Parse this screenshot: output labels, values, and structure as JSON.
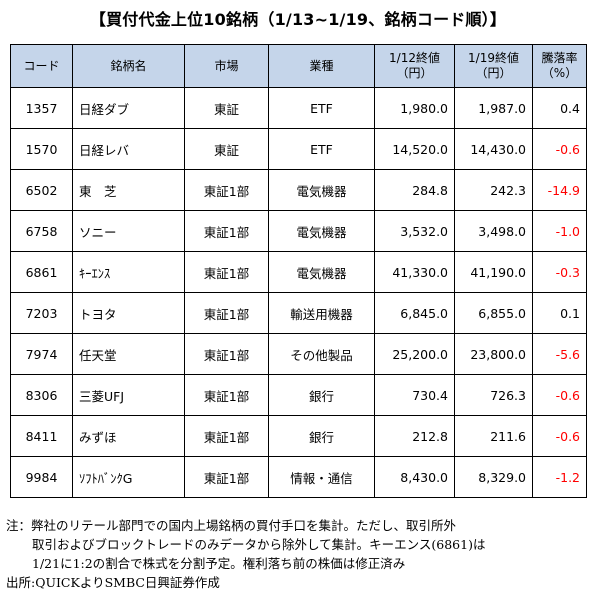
{
  "title": "【買付代金上位10銘柄（1/13~1/19、銘柄コード順）】",
  "table": {
    "headers": {
      "code": "コード",
      "name": "銘柄名",
      "market": "市場",
      "sector": "業種",
      "price_0112_line1": "1/12終値",
      "price_0112_line2": "（円）",
      "price_0119_line1": "1/19終値",
      "price_0119_line2": "（円）",
      "change_line1": "騰落率",
      "change_line2": "（%）"
    },
    "rows": [
      {
        "code": "1357",
        "name": "日経ダブ",
        "market": "東証",
        "sector": "ETF",
        "p1": "1,980.0",
        "p2": "1,987.0",
        "chg": "0.4",
        "neg": false
      },
      {
        "code": "1570",
        "name": "日経レバ",
        "market": "東証",
        "sector": "ETF",
        "p1": "14,520.0",
        "p2": "14,430.0",
        "chg": "-0.6",
        "neg": true
      },
      {
        "code": "6502",
        "name": "東　芝",
        "market": "東証1部",
        "sector": "電気機器",
        "p1": "284.8",
        "p2": "242.3",
        "chg": "-14.9",
        "neg": true
      },
      {
        "code": "6758",
        "name": "ソニー",
        "market": "東証1部",
        "sector": "電気機器",
        "p1": "3,532.0",
        "p2": "3,498.0",
        "chg": "-1.0",
        "neg": true
      },
      {
        "code": "6861",
        "name": "ｷｰｴﾝｽ",
        "market": "東証1部",
        "sector": "電気機器",
        "p1": "41,330.0",
        "p2": "41,190.0",
        "chg": "-0.3",
        "neg": true
      },
      {
        "code": "7203",
        "name": "トヨタ",
        "market": "東証1部",
        "sector": "輸送用機器",
        "p1": "6,845.0",
        "p2": "6,855.0",
        "chg": "0.1",
        "neg": false
      },
      {
        "code": "7974",
        "name": "任天堂",
        "market": "東証1部",
        "sector": "その他製品",
        "p1": "25,200.0",
        "p2": "23,800.0",
        "chg": "-5.6",
        "neg": true
      },
      {
        "code": "8306",
        "name": "三菱UFJ",
        "market": "東証1部",
        "sector": "銀行",
        "p1": "730.4",
        "p2": "726.3",
        "chg": "-0.6",
        "neg": true
      },
      {
        "code": "8411",
        "name": "みずほ",
        "market": "東証1部",
        "sector": "銀行",
        "p1": "212.8",
        "p2": "211.6",
        "chg": "-0.6",
        "neg": true
      },
      {
        "code": "9984",
        "name": "ｿﾌﾄﾊﾞﾝｸG",
        "market": "東証1部",
        "sector": "情報・通信",
        "p1": "8,430.0",
        "p2": "8,329.0",
        "chg": "-1.2",
        "neg": true
      }
    ]
  },
  "colors": {
    "header_bg": "#c5d5ea",
    "negative": "#ff0000"
  },
  "notes": {
    "line1": "注：弊社のリテール部門での国内上場銘柄の買付手口を集計。ただし、取引所外",
    "line2": "取引およびブロックトレードのみデータから除外して集計。キーエンス(6861)は",
    "line3": "1/21に1:2の割合で株式を分割予定。権利落ち前の株価は修正済み",
    "line4": "出所:QUICKよりSMBC日興証券作成"
  }
}
